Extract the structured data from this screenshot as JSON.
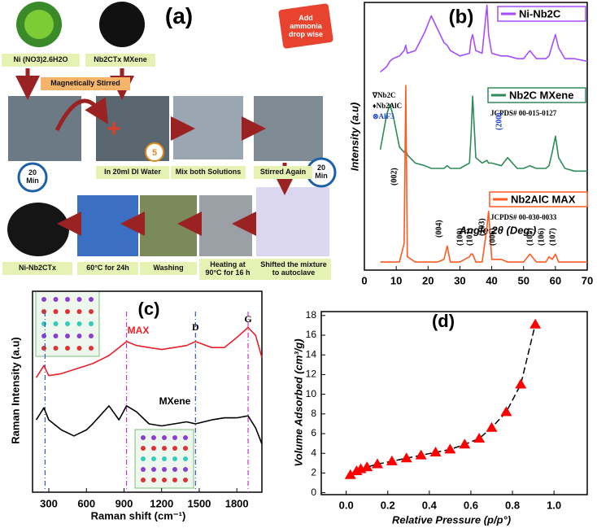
{
  "diagram": {
    "label": "(a)",
    "timer": "5",
    "steps": [
      "Ni (NO3)2.6H2O",
      "Nb2CTx MXene",
      "Magnetically Stirred",
      "Add ammonia drop wise",
      "20 Min",
      "In 20ml DI Water",
      "Mix both Solutions",
      "Stirred Again",
      "20 Min",
      "Ni-Nb2CTx",
      "60°C for 24h",
      "Washing",
      "Heating at 90°C for 16 h",
      "Shifted the mixture to autoclave"
    ]
  },
  "chart_data": [
    {
      "type": "line",
      "title": "(b)",
      "xlabel": "Angle 2θ (Deg.)",
      "ylabel": "Intensity (a.u)",
      "x": [
        5,
        7,
        8,
        9,
        11,
        12.5,
        13,
        13.5,
        16,
        19,
        21,
        23,
        25,
        26,
        27,
        30,
        33,
        33.5,
        34,
        35,
        37,
        38.5,
        39,
        40,
        43,
        45,
        48,
        50,
        52,
        54,
        57,
        58,
        59,
        60,
        61,
        63,
        66,
        70
      ],
      "xlim": [
        0,
        70
      ],
      "xticks": [
        0,
        10,
        20,
        30,
        40,
        50,
        60,
        70
      ],
      "ylim": [
        0,
        100
      ],
      "series": [
        {
          "name": "Ni-Nb2C",
          "color": "#a64dff",
          "values": [
            74,
            76,
            78,
            79,
            80,
            82,
            84,
            81,
            82,
            89,
            95,
            90,
            85,
            84,
            82,
            80,
            81,
            86,
            88,
            82,
            81,
            99,
            88,
            81,
            80,
            80,
            79,
            79,
            82,
            79,
            79,
            80,
            84,
            88,
            83,
            79,
            79,
            78
          ]
        },
        {
          "name": "Nb2C MXene",
          "color": "#2e8b57",
          "values": [
            45,
            58,
            62,
            58,
            46,
            44,
            45,
            43,
            40,
            39,
            38,
            38,
            38,
            39,
            38,
            38,
            40,
            50,
            65,
            42,
            40,
            41,
            40,
            40,
            39,
            42,
            38,
            38,
            39,
            38,
            38,
            39,
            44,
            50,
            42,
            38,
            37,
            37
          ]
        },
        {
          "name": "Nb2AlC MAX",
          "color": "#ff5a1f",
          "values": [
            3,
            3,
            3,
            3,
            3,
            10,
            69,
            5,
            3,
            3,
            3,
            3,
            4,
            9,
            3,
            3,
            5,
            6,
            6,
            3,
            3,
            16,
            22,
            4,
            4,
            3,
            3,
            3,
            6,
            3,
            3,
            5,
            4,
            6,
            3,
            3,
            3,
            3
          ]
        }
      ],
      "annotations": [
        "∇Nb2C",
        "♦Nb2AlC",
        "⊗AlF3",
        "JCPDS# 00-015-0127",
        "JCPDS# 00-030-0033",
        "(002)",
        "(004)",
        "(100)",
        "(101)",
        "(103)",
        "(006)",
        "(105)",
        "(106)",
        "(107)",
        "(200)"
      ]
    },
    {
      "type": "line",
      "title": "(c)",
      "xlabel": "Raman shift (cm⁻¹)",
      "ylabel": "Raman Intensity (a.u)",
      "x": [
        200,
        260,
        300,
        400,
        500,
        600,
        650,
        780,
        860,
        920,
        1000,
        1100,
        1200,
        1300,
        1400,
        1470,
        1600,
        1700,
        1800,
        1890,
        1950,
        2000
      ],
      "xlim": [
        170,
        2000
      ],
      "xticks": [
        300,
        600,
        900,
        1200,
        1500,
        1800
      ],
      "ylim": [
        0,
        100
      ],
      "series": [
        {
          "name": "MAX",
          "color": "#e8212a",
          "values": [
            57,
            63,
            58,
            59,
            61,
            63,
            64,
            68,
            72,
            75,
            73,
            72,
            71,
            72,
            73,
            75,
            72,
            72,
            77,
            82,
            78,
            67
          ]
        },
        {
          "name": "MXene",
          "color": "#000000",
          "values": [
            36,
            42,
            36,
            31,
            28,
            31,
            34,
            43,
            36,
            43,
            40,
            34,
            33,
            34,
            35,
            34,
            36,
            37,
            37,
            38,
            32,
            24
          ]
        }
      ],
      "reference_lines": [
        {
          "x": 270,
          "color": "#3355cc"
        },
        {
          "x": 920,
          "color": "#cc33cc"
        },
        {
          "x": 1470,
          "label": "D",
          "color": "#3355cc"
        },
        {
          "x": 1890,
          "label": "G",
          "color": "#cc33cc"
        }
      ]
    },
    {
      "type": "scatter",
      "title": "(d)",
      "xlabel": "Relative Pressure (p/p°)",
      "ylabel": "Volume Adsorbed (cm³/g)",
      "x": [
        0.02,
        0.05,
        0.07,
        0.1,
        0.15,
        0.22,
        0.29,
        0.36,
        0.43,
        0.5,
        0.57,
        0.64,
        0.7,
        0.77,
        0.84,
        0.91
      ],
      "series": [
        {
          "color": "#ff0000",
          "values": [
            1.8,
            2.2,
            2.4,
            2.6,
            2.9,
            3.2,
            3.5,
            3.8,
            4.1,
            4.4,
            4.9,
            5.5,
            6.6,
            8.2,
            11,
            17.1
          ]
        }
      ],
      "line_style": "dashed",
      "xlim": [
        -0.12,
        1.16
      ],
      "xticks": [
        {
          "value": 0,
          "label": "0.0"
        },
        {
          "value": 0.2,
          "label": "0.2"
        },
        {
          "value": 0.4,
          "label": "0.4"
        },
        {
          "value": 0.6,
          "label": "0.6"
        },
        {
          "value": 0.8,
          "label": "0.8"
        },
        {
          "value": 1,
          "label": "1.0"
        }
      ],
      "ylim": [
        -0.2,
        18.4
      ],
      "yticks": [
        0,
        2,
        4,
        6,
        8,
        10,
        12,
        14,
        16,
        18
      ]
    }
  ]
}
